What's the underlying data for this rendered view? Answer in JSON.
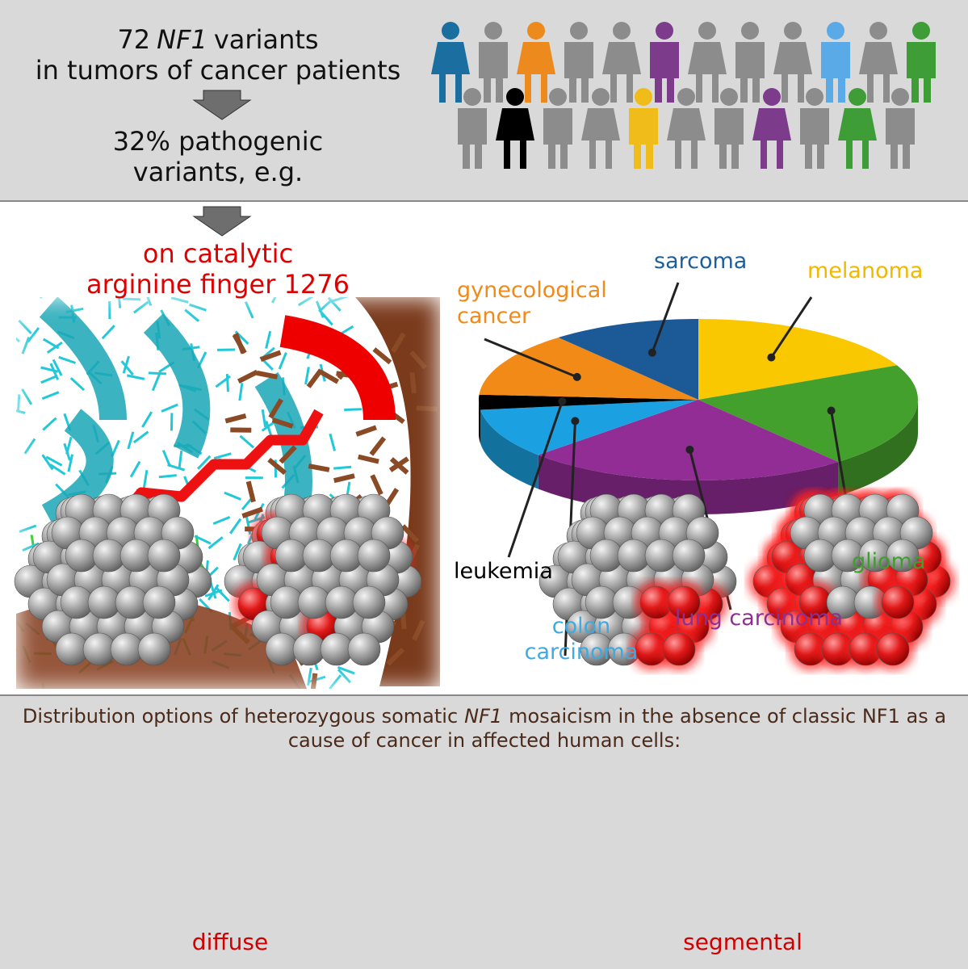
{
  "header": {
    "line1": [
      "72",
      "NF1",
      "variants"
    ],
    "line2": "in tumors of cancer patients",
    "line3": "32% pathogenic variants, e.g."
  },
  "highlight": {
    "line1": "on catalytic",
    "line2": "arginine finger 1276"
  },
  "chart_data": {
    "type": "pie",
    "categories": [
      "melanoma",
      "glioma",
      "lung carcinoma",
      "colon carcinoma",
      "leukemia",
      "gynecological cancer",
      "sarcoma"
    ],
    "values": [
      18,
      21,
      24,
      10,
      3,
      13,
      11
    ],
    "colors": [
      "#f9c800",
      "#44a02d",
      "#912d94",
      "#1ba1e2",
      "#000000",
      "#f28a17",
      "#1b5a96"
    ],
    "label_colors": [
      "#f2b800",
      "#3f9e2e",
      "#8e2f91",
      "#3fa9e0",
      "#000000",
      "#f08a1a",
      "#1f5f99"
    ]
  },
  "footer": {
    "caption": [
      "Distribution options of heterozygous somatic",
      "NF1",
      "mosaicism in the absence of classic NF1 as a cause of cancer in affected human cells:"
    ],
    "left_label": "diffuse",
    "right_label": "segmental"
  }
}
